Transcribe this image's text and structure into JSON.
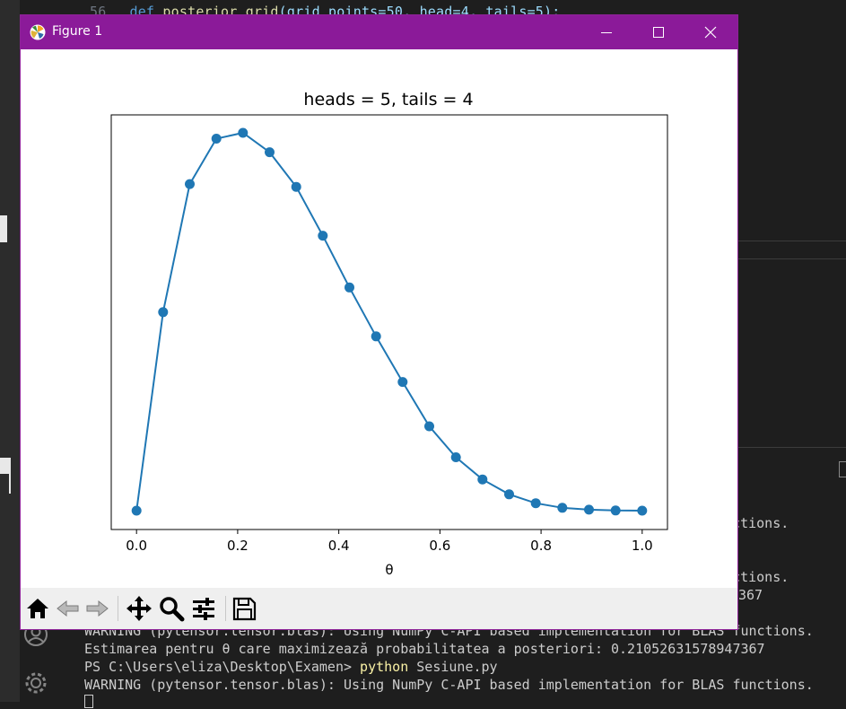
{
  "editor": {
    "line_number": "56",
    "code_keyword": "def",
    "code_fn": "posterior_grid",
    "code_params": "(grid_points=50, head=4, tails=5):"
  },
  "terminal": {
    "lines": [
      {
        "text": "WARNING (pytensor.tensor.blas): Using NumPy C-API based implementation for BLAS functions."
      },
      {
        "text": "Estimarea pentru θ care maximizează probabilitatea a posteriori: 0.21052631578947367"
      },
      {
        "prompt": "PS C:\\Users\\eliza\\Desktop\\Examen> ",
        "cmd": "python",
        "rest": " Sesiune.py"
      },
      {
        "text": "WARNING (pytensor.tensor.blas): Using NumPy C-API based implementation for BLAS functions."
      }
    ],
    "partial": {
      "functions": "unctions.",
      "value_tail": "367"
    }
  },
  "window": {
    "title": "Figure 1",
    "titlebar_color": "#8b1a99"
  },
  "chart_data": {
    "type": "line",
    "title": "heads = 5, tails = 4",
    "xlabel": "θ",
    "ylabel": "",
    "xlim": [
      -0.05,
      1.05
    ],
    "xticks": [
      "0.0",
      "0.2",
      "0.4",
      "0.6",
      "0.8",
      "1.0"
    ],
    "y_ticks_visible": false,
    "color": "#1f77b4",
    "marker": "circle",
    "series": [
      {
        "x": [
          0.0,
          0.05263,
          0.10526,
          0.15789,
          0.21053,
          0.26316,
          0.31579,
          0.36842,
          0.42105,
          0.47368,
          0.52632,
          0.57895,
          0.63158,
          0.68421,
          0.73684,
          0.78947,
          0.84211,
          0.89474,
          0.94737,
          1.0
        ],
        "y": [
          0.0,
          0.5254,
          0.8643,
          0.9846,
          1.0,
          0.9488,
          0.8571,
          0.7279,
          0.5908,
          0.4613,
          0.3407,
          0.2233,
          0.1414,
          0.0826,
          0.0432,
          0.0196,
          0.0077,
          0.0025,
          0.0005,
          0.0
        ]
      }
    ]
  },
  "toolbar": {
    "icons": [
      "home-icon",
      "back-icon",
      "forward-icon",
      "pan-icon",
      "zoom-icon",
      "configure-subplots-icon",
      "save-icon"
    ]
  }
}
